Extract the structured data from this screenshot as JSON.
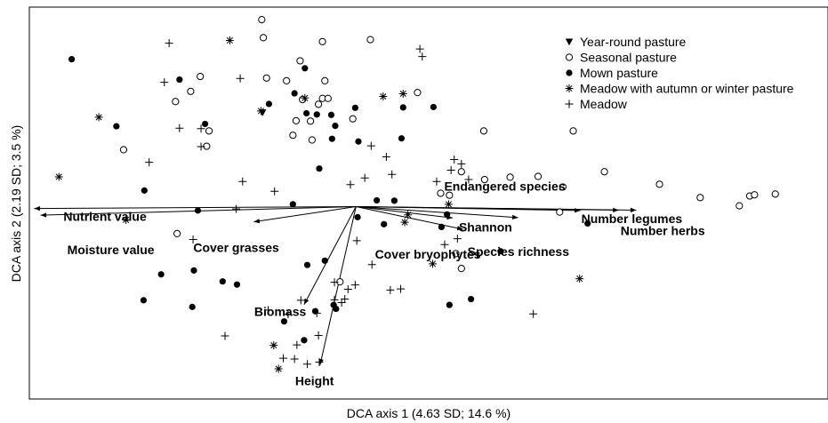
{
  "chart_data": {
    "type": "scatter",
    "title": "",
    "xlabel": "DCA axis 1 (4.63 SD; 14.6 %)",
    "ylabel": "DCA axis 2 (2.19 SD; 3.5 %)",
    "xlim": [
      0,
      1000
    ],
    "ylim": [
      0,
      1000
    ],
    "grid": false,
    "legend_position": "top-right",
    "legend": [
      {
        "name": "Year-round pasture",
        "marker": "triangle-down"
      },
      {
        "name": "Seasonal pasture",
        "marker": "open-circle"
      },
      {
        "name": "Mown pasture",
        "marker": "filled-circle"
      },
      {
        "name": "Meadow with autumn or winter pasture",
        "marker": "asterisk"
      },
      {
        "name": "Meadow",
        "marker": "plus"
      }
    ],
    "vector_origin": [
      409,
      491
    ],
    "vectors": [
      {
        "label": "Endangered species",
        "x": 760,
        "y": 482
      },
      {
        "label": "Shannon",
        "x": 530,
        "y": 462
      },
      {
        "label": "Species richness",
        "x": 543,
        "y": 433
      },
      {
        "label": "Cover bryophytes",
        "x": 612,
        "y": 463
      },
      {
        "label": "Number legumes",
        "x": 690,
        "y": 481
      },
      {
        "label": "Number herbs",
        "x": 738,
        "y": 482
      },
      {
        "label": "Nutrient value",
        "x": 6,
        "y": 486
      },
      {
        "label": "Moisture value",
        "x": 14,
        "y": 469
      },
      {
        "label": "Cover grasses",
        "x": 281,
        "y": 452
      },
      {
        "label": "Biomass",
        "x": 344,
        "y": 241
      },
      {
        "label": "Height",
        "x": 364,
        "y": 87
      }
    ],
    "series": [
      {
        "name": "Year-round pasture",
        "points": [
          [
            292,
            731
          ]
        ]
      },
      {
        "name": "Seasonal pasture",
        "points": [
          [
            291,
            968
          ],
          [
            293,
            922
          ],
          [
            367,
            912
          ],
          [
            427,
            917
          ],
          [
            214,
            823
          ],
          [
            202,
            785
          ],
          [
            297,
            819
          ],
          [
            322,
            812
          ],
          [
            339,
            863
          ],
          [
            370,
            812
          ],
          [
            367,
            767
          ],
          [
            374,
            767
          ],
          [
            486,
            782
          ],
          [
            405,
            715
          ],
          [
            342,
            764
          ],
          [
            183,
            759
          ],
          [
            225,
            684
          ],
          [
            222,
            645
          ],
          [
            118,
            636
          ],
          [
            569,
            684
          ],
          [
            681,
            684
          ],
          [
            541,
            580
          ],
          [
            570,
            560
          ],
          [
            602,
            566
          ],
          [
            637,
            568
          ],
          [
            720,
            580
          ],
          [
            789,
            548
          ],
          [
            840,
            514
          ],
          [
            889,
            493
          ],
          [
            902,
            518
          ],
          [
            908,
            521
          ],
          [
            934,
            523
          ],
          [
            668,
            541
          ],
          [
            534,
            371
          ],
          [
            334,
            710
          ],
          [
            352,
            709
          ],
          [
            330,
            673
          ],
          [
            354,
            661
          ],
          [
            362,
            752
          ],
          [
            541,
            333
          ],
          [
            389,
            299
          ],
          [
            664,
            477
          ],
          [
            515,
            525
          ],
          [
            526,
            520
          ],
          [
            185,
            422
          ]
        ]
      },
      {
        "name": "Mown pasture",
        "points": [
          [
            53,
            867
          ],
          [
            188,
            815
          ],
          [
            332,
            780
          ],
          [
            345,
            844
          ],
          [
            408,
            743
          ],
          [
            468,
            744
          ],
          [
            506,
            745
          ],
          [
            220,
            702
          ],
          [
            109,
            696
          ],
          [
            300,
            753
          ],
          [
            347,
            729
          ],
          [
            360,
            726
          ],
          [
            378,
            725
          ],
          [
            383,
            697
          ],
          [
            379,
            664
          ],
          [
            412,
            657
          ],
          [
            466,
            665
          ],
          [
            363,
            588
          ],
          [
            144,
            532
          ],
          [
            211,
            481
          ],
          [
            330,
            497
          ],
          [
            435,
            507
          ],
          [
            457,
            506
          ],
          [
            411,
            464
          ],
          [
            523,
            471
          ],
          [
            444,
            446
          ],
          [
            516,
            439
          ],
          [
            699,
            448
          ],
          [
            590,
            377
          ],
          [
            370,
            353
          ],
          [
            348,
            342
          ],
          [
            165,
            318
          ],
          [
            206,
            328
          ],
          [
            242,
            300
          ],
          [
            260,
            292
          ],
          [
            143,
            252
          ],
          [
            204,
            235
          ],
          [
            319,
            198
          ],
          [
            344,
            150
          ],
          [
            358,
            224
          ],
          [
            553,
            255
          ],
          [
            526,
            240
          ],
          [
            384,
            230
          ],
          [
            381,
            240
          ]
        ]
      },
      {
        "name": "Meadow with autumn or winter pasture",
        "points": [
          [
            251,
            915
          ],
          [
            87,
            719
          ],
          [
            37,
            567
          ],
          [
            121,
            457
          ],
          [
            443,
            772
          ],
          [
            468,
            779
          ],
          [
            290,
            735
          ],
          [
            345,
            768
          ],
          [
            525,
            497
          ],
          [
            474,
            470
          ],
          [
            470,
            451
          ],
          [
            505,
            345
          ],
          [
            689,
            307
          ],
          [
            306,
            137
          ],
          [
            312,
            77
          ]
        ]
      },
      {
        "name": "Meadow",
        "points": [
          [
            175,
            908
          ],
          [
            169,
            808
          ],
          [
            264,
            818
          ],
          [
            489,
            893
          ],
          [
            492,
            874
          ],
          [
            188,
            691
          ],
          [
            215,
            690
          ],
          [
            215,
            644
          ],
          [
            150,
            604
          ],
          [
            267,
            555
          ],
          [
            307,
            530
          ],
          [
            259,
            485
          ],
          [
            402,
            547
          ],
          [
            428,
            646
          ],
          [
            447,
            618
          ],
          [
            532,
            611
          ],
          [
            541,
            600
          ],
          [
            528,
            584
          ],
          [
            454,
            573
          ],
          [
            420,
            564
          ],
          [
            510,
            555
          ],
          [
            550,
            560
          ],
          [
            410,
            404
          ],
          [
            536,
            409
          ],
          [
            520,
            394
          ],
          [
            429,
            343
          ],
          [
            452,
            278
          ],
          [
            465,
            281
          ],
          [
            205,
            407
          ],
          [
            408,
            291
          ],
          [
            382,
            298
          ],
          [
            399,
            280
          ],
          [
            391,
            246
          ],
          [
            340,
            252
          ],
          [
            299,
            227
          ],
          [
            324,
            216
          ],
          [
            360,
            219
          ],
          [
            245,
            161
          ],
          [
            335,
            138
          ],
          [
            318,
            104
          ],
          [
            332,
            102
          ],
          [
            362,
            162
          ],
          [
            348,
            89
          ],
          [
            363,
            94
          ],
          [
            631,
            217
          ],
          [
            395,
            255
          ],
          [
            382,
            253
          ]
        ]
      }
    ]
  }
}
